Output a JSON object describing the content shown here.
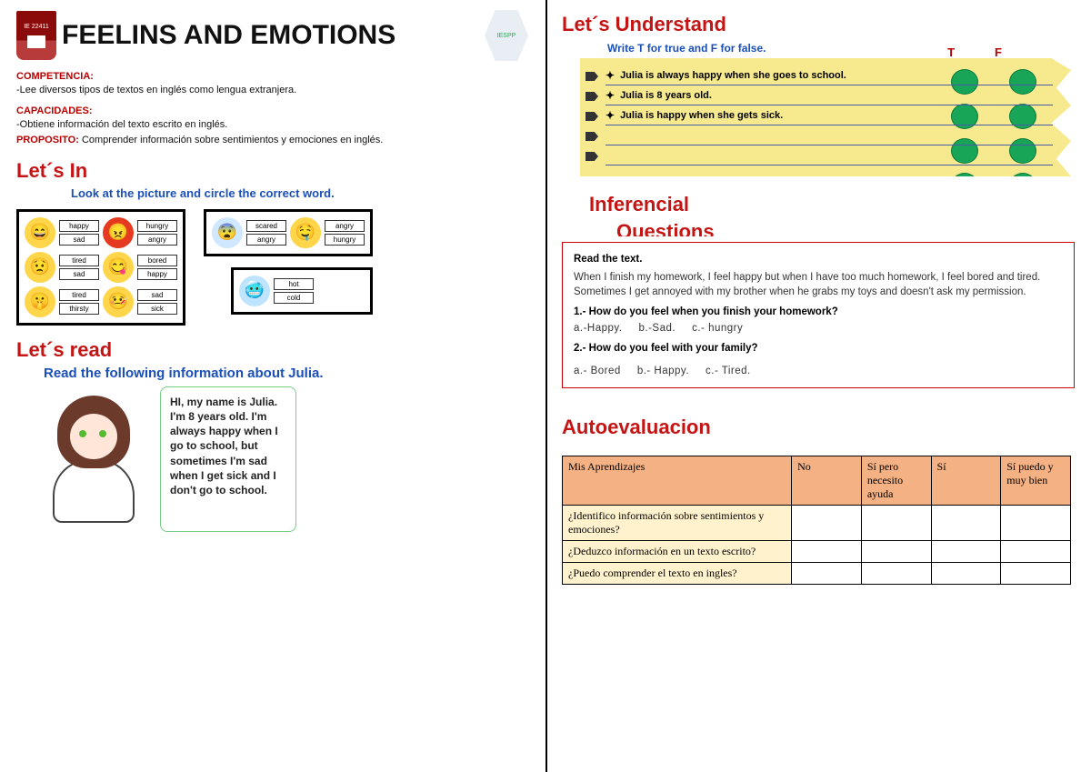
{
  "header": {
    "badge1_text": "IE 22411",
    "title": "FEELINS AND EMOTIONS",
    "badge2_text": "IESPP"
  },
  "competencia": {
    "label": "COMPETENCIA:",
    "text": "-Lee diversos tipos de textos en inglés como lengua extranjera."
  },
  "capacidades": {
    "label": "CAPACIDADES:",
    "text": "-Obtiene información del texto escrito en inglés."
  },
  "proposito": {
    "label": "PROPOSITO:",
    "text": "Comprender información sobre sentimientos y emociones en inglés."
  },
  "lets_in": {
    "title": "Let´s In",
    "instr": "Look at the picture and circle the correct word.",
    "box1": [
      {
        "face_bg": "#ffd54a",
        "glyph": "😄",
        "opts": [
          "happy",
          "sad"
        ]
      },
      {
        "face_bg": "#e53a1f",
        "glyph": "😠",
        "opts": [
          "hungry",
          "angry"
        ]
      },
      {
        "face_bg": "#ffd54a",
        "glyph": "😟",
        "opts": [
          "tired",
          "sad"
        ]
      },
      {
        "face_bg": "#ffd54a",
        "glyph": "😋",
        "opts": [
          "bored",
          "happy"
        ]
      },
      {
        "face_bg": "#ffd54a",
        "glyph": "🤫",
        "opts": [
          "tired",
          "thirsty"
        ]
      },
      {
        "face_bg": "#ffd54a",
        "glyph": "🤒",
        "opts": [
          "sad",
          "sick"
        ]
      }
    ],
    "box2": [
      {
        "face_bg": "#cfe8ff",
        "glyph": "😨",
        "opts": [
          "scared",
          "angry"
        ]
      },
      {
        "face_bg": "#ffd54a",
        "glyph": "🤤",
        "opts": [
          "angry",
          "hungry"
        ]
      }
    ],
    "box3": [
      {
        "face_bg": "#bfe4ff",
        "glyph": "🥶",
        "opts": [
          "hot",
          "cold"
        ]
      }
    ]
  },
  "lets_read": {
    "title": "Let´s read",
    "instr": "Read the following information about Julia.",
    "speech": "HI, my name is Julia. I'm 8 years old. I'm always happy when I go to school, but sometimes I'm sad when I get sick and I don't go to school."
  },
  "lets_understand": {
    "title": "Let´s Understand",
    "instr": "Write T for true and F for false.",
    "head_T": "T",
    "head_F": "F",
    "items": [
      "Julia is always happy when she goes to school.",
      "Julia is 8 years old.",
      "Julia is happy when she gets sick."
    ],
    "dot_color": "#18a558"
  },
  "inferencial": {
    "title1": "Inferencial",
    "title2": "Questions",
    "read_label": "Read the text.",
    "para": "When I finish my homework, I feel happy but when I have too much homework, I feel bored and tired. Sometimes I get annoyed with my brother when he grabs my toys and doesn't ask my permission.",
    "q1": "1.- How do you feel when you finish your homework?",
    "q1_opts": [
      "a.-Happy.",
      "b.-Sad.",
      "c.- hungry"
    ],
    "q2": "2.- How do you feel with your family?",
    "q2_opts": [
      "a.- Bored",
      "b.- Happy.",
      "c.- Tired."
    ]
  },
  "autoeval": {
    "title": "Autoevaluacion",
    "headers": [
      "Mis Aprendizajes",
      "No",
      "Sí pero necesito ayuda",
      "Sí",
      "Sí puedo y muy bien"
    ],
    "rows": [
      "¿Identifico información sobre sentimientos y emociones?",
      "¿Deduzco información en un texto escrito?",
      "¿Puedo comprender el texto en ingles?"
    ]
  },
  "colors": {
    "red_heading": "#c41414",
    "blue_heading": "#1a4fb8",
    "dark_red": "#b90000",
    "paper_bg": "#f7e98e",
    "th_bg": "#f4b183",
    "td_bg": "#fff2cc"
  }
}
